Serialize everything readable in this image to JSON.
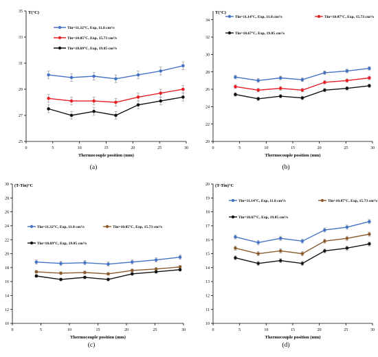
{
  "figure": {
    "panel_captions": [
      "(a)",
      "(b)",
      "(c)",
      "(d)"
    ]
  },
  "chart_data": [
    {
      "panel": "(a)",
      "type": "line",
      "title": "",
      "ylabel": "T(°C)",
      "xlabel": "Thermocouple position (mm)",
      "xlim": [
        0,
        30
      ],
      "ylim": [
        25,
        35
      ],
      "xticks": [
        0,
        5,
        10,
        15,
        20,
        25,
        30
      ],
      "yticks": [
        25,
        27,
        29,
        31,
        33,
        35
      ],
      "grid": false,
      "legend_position": "upper-left",
      "x": [
        4.2,
        8.5,
        12.7,
        16.8,
        21.0,
        25.2,
        29.4
      ],
      "series": [
        {
          "name": "Tin=11.32°C, Exp, 11.8 cm³/s",
          "color": "#4472c4",
          "values": [
            30.1,
            29.9,
            30.0,
            29.8,
            30.1,
            30.4,
            30.8
          ],
          "error": 0.3
        },
        {
          "name": "Tin=10.85°C, Exp, 15.73 cm³/s",
          "color": "#e81e25",
          "values": [
            28.3,
            28.1,
            28.1,
            28.0,
            28.4,
            28.7,
            29.0
          ],
          "error": 0.3
        },
        {
          "name": "Tin=10.69°C, Exp, 19.85 cm³/s",
          "color": "#111111",
          "values": [
            27.5,
            27.0,
            27.3,
            27.0,
            27.8,
            28.1,
            28.4
          ],
          "error": 0.3
        }
      ]
    },
    {
      "panel": "(b)",
      "type": "line",
      "title": "",
      "ylabel": "T(°C)",
      "xlabel": "Thermocouple position (mm)",
      "xlim": [
        0,
        30
      ],
      "ylim": [
        20,
        35
      ],
      "xticks": [
        0,
        5,
        10,
        15,
        20,
        25,
        30
      ],
      "yticks": [
        20,
        22,
        24,
        26,
        28,
        30,
        32,
        34
      ],
      "grid": false,
      "legend_position": "top",
      "x": [
        4.2,
        8.5,
        12.7,
        16.8,
        21.0,
        25.2,
        29.4
      ],
      "series": [
        {
          "name": "Tin=11.14°C, Exp, 11.8 cm³/s",
          "color": "#4472c4",
          "values": [
            27.4,
            27.0,
            27.3,
            27.1,
            27.9,
            28.1,
            28.4
          ],
          "error": 0.2
        },
        {
          "name": "Tin=10.87°C, Exp, 15.73 cm³/s",
          "color": "#e81e25",
          "values": [
            26.3,
            25.9,
            26.1,
            25.9,
            26.8,
            27.0,
            27.3
          ],
          "error": 0.2
        },
        {
          "name": "Tin=10.67°C, Exp, 19.85 cm³/s",
          "color": "#111111",
          "values": [
            25.4,
            24.9,
            25.2,
            25.0,
            25.9,
            26.1,
            26.4
          ],
          "error": 0.2
        }
      ]
    },
    {
      "panel": "(c)",
      "type": "line",
      "title": "",
      "ylabel": "(T-Tin)°C",
      "xlabel": "Thermocouple position (mm)",
      "xlim": [
        0,
        30
      ],
      "ylim": [
        10,
        30
      ],
      "xticks": [
        0,
        5,
        10,
        15,
        20,
        25,
        30
      ],
      "yticks": [
        10,
        12,
        14,
        16,
        18,
        20,
        22,
        24,
        26,
        28,
        30
      ],
      "grid": false,
      "legend_position": "middle",
      "x": [
        4.2,
        8.5,
        12.7,
        16.8,
        21.0,
        25.2,
        29.4
      ],
      "series": [
        {
          "name": "Tin=11.32°C, Exp, 11.8 cm³/s",
          "color": "#4472c4",
          "values": [
            18.8,
            18.6,
            18.7,
            18.5,
            18.8,
            19.1,
            19.5
          ],
          "error": 0.3
        },
        {
          "name": "Tin=10.85°C, Exp, 15.73 cm³/s",
          "color": "#8b5a2b",
          "values": [
            17.4,
            17.2,
            17.3,
            17.1,
            17.6,
            17.8,
            18.1
          ],
          "error": 0.2
        },
        {
          "name": "Tin=10.69°C, Exp, 19.85 cm³/s",
          "color": "#111111",
          "values": [
            16.8,
            16.3,
            16.6,
            16.3,
            17.1,
            17.4,
            17.7
          ],
          "error": 0.2
        }
      ]
    },
    {
      "panel": "(d)",
      "type": "line",
      "title": "",
      "ylabel": "(T-Tin)°C",
      "xlabel": "Thermocouple position (mm)",
      "xlim": [
        0,
        30
      ],
      "ylim": [
        10,
        20
      ],
      "xticks": [
        0,
        5,
        10,
        15,
        20,
        25,
        30
      ],
      "yticks": [
        10,
        11,
        12,
        13,
        14,
        15,
        16,
        17,
        18,
        19,
        20
      ],
      "grid": false,
      "legend_position": "upper-left",
      "x": [
        4.2,
        8.5,
        12.7,
        16.8,
        21.0,
        25.2,
        29.4
      ],
      "series": [
        {
          "name": "Tin=11.14°C, Exp, 11.8 cm³/s",
          "color": "#4472c4",
          "values": [
            16.2,
            15.8,
            16.1,
            15.9,
            16.7,
            16.9,
            17.3
          ],
          "error": 0.15
        },
        {
          "name": "Tin=10.87°C, Exp, 15.73 cm³/s",
          "color": "#8b5a2b",
          "values": [
            15.4,
            15.0,
            15.2,
            15.0,
            15.9,
            16.1,
            16.4
          ],
          "error": 0.15
        },
        {
          "name": "Tin=10.67°C, Exp, 19.85 cm³/s",
          "color": "#111111",
          "values": [
            14.7,
            14.3,
            14.5,
            14.3,
            15.2,
            15.4,
            15.7
          ],
          "error": 0.15
        }
      ]
    }
  ]
}
